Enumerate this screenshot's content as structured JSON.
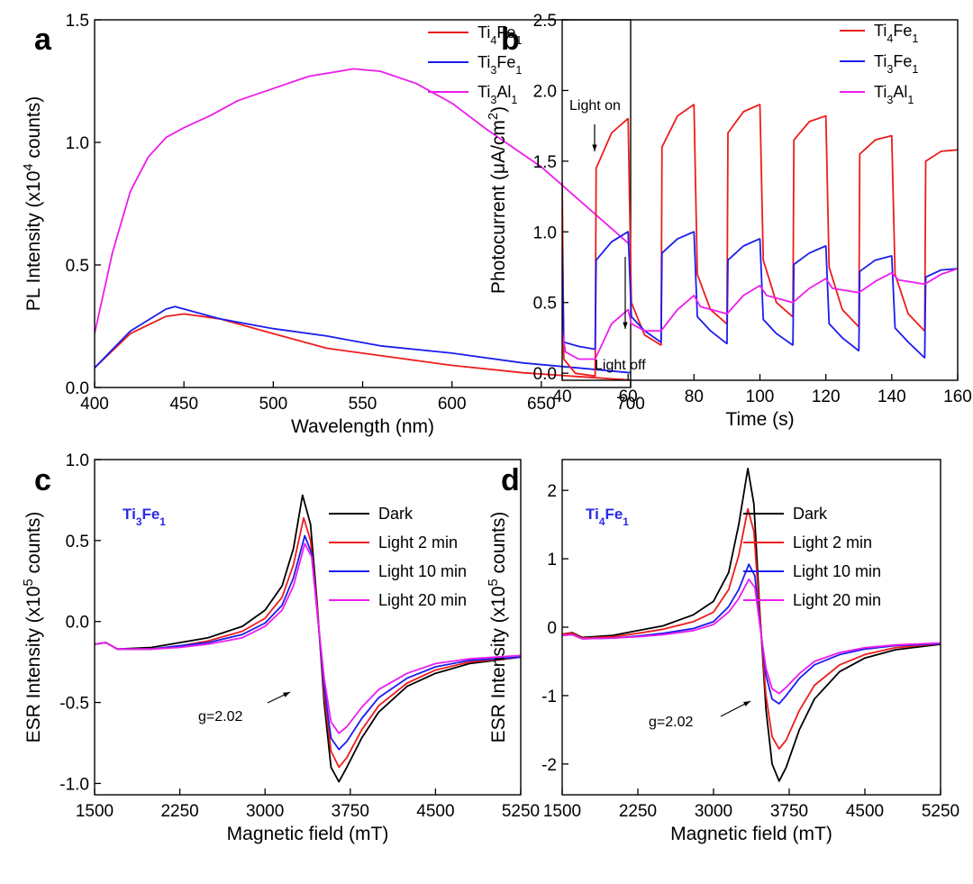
{
  "chart_data": [
    {
      "type": "line",
      "panel_label": "a",
      "xlabel": "Wavelength (nm)",
      "ylabel": "PL Intensity (x10{4} counts)",
      "xlim": [
        400,
        700
      ],
      "ylim": [
        0.0,
        1.5
      ],
      "xticks": [
        400,
        450,
        500,
        550,
        600,
        650,
        700
      ],
      "xtick_labels": [
        "400",
        "450",
        "500",
        "550",
        "600",
        "650",
        "700"
      ],
      "yticks": [
        0.0,
        0.5,
        1.0,
        1.5
      ],
      "ytick_labels": [
        "0.0",
        "0.5",
        "1.0",
        "1.5"
      ],
      "legend_position": "top-right",
      "series": [
        {
          "name": "Ti{4}Fe{1}",
          "color": "#ee1c1c",
          "x": [
            400,
            420,
            440,
            450,
            470,
            500,
            530,
            560,
            600,
            640,
            670,
            700
          ],
          "y": [
            0.08,
            0.22,
            0.29,
            0.3,
            0.28,
            0.22,
            0.16,
            0.13,
            0.09,
            0.06,
            0.045,
            0.03
          ]
        },
        {
          "name": "Ti{3}Fe{1}",
          "color": "#1c1cee",
          "x": [
            400,
            420,
            440,
            445,
            470,
            500,
            530,
            560,
            600,
            640,
            670,
            700
          ],
          "y": [
            0.08,
            0.23,
            0.32,
            0.33,
            0.28,
            0.24,
            0.21,
            0.17,
            0.14,
            0.1,
            0.08,
            0.06
          ]
        },
        {
          "name": "Ti{3}Al{1}",
          "color": "#ee1cee",
          "x": [
            400,
            410,
            420,
            430,
            440,
            450,
            465,
            480,
            500,
            520,
            545,
            560,
            580,
            600,
            620,
            650,
            675,
            700
          ],
          "y": [
            0.22,
            0.55,
            0.8,
            0.94,
            1.02,
            1.06,
            1.11,
            1.17,
            1.22,
            1.27,
            1.3,
            1.29,
            1.24,
            1.16,
            1.05,
            0.9,
            0.74,
            0.58
          ]
        }
      ]
    },
    {
      "type": "line",
      "panel_label": "b",
      "xlabel": "Time (s)",
      "ylabel": "Photocurrent (μA/cm{2})",
      "xlim": [
        40,
        160
      ],
      "ylim": [
        -0.05,
        2.5
      ],
      "xticks": [
        40,
        60,
        80,
        100,
        120,
        140,
        160
      ],
      "xtick_labels": [
        "40",
        "60",
        "80",
        "100",
        "120",
        "140",
        "160"
      ],
      "yticks": [
        0.0,
        0.5,
        1.0,
        1.5,
        2.0,
        2.5
      ],
      "ytick_labels": [
        "0.0",
        "0.5",
        "1.0",
        "1.5",
        "2.0",
        "2.5"
      ],
      "legend_position": "top-right",
      "annotations": [
        {
          "text": "Light on",
          "x": 50,
          "y": 2.02
        },
        {
          "text": "Light off",
          "x": 60,
          "y": 0.0
        }
      ],
      "series": [
        {
          "name": "Ti{4}Fe{1}",
          "color": "#ee1c1c",
          "x": [
            40,
            40.5,
            44,
            49.9,
            50,
            50.3,
            55,
            59.9,
            60,
            61,
            65,
            69.9,
            70,
            70.3,
            75,
            79.9,
            80,
            81,
            85,
            89.9,
            90,
            90.3,
            95,
            99.9,
            100,
            101,
            105,
            109.9,
            110,
            110.3,
            115,
            119.9,
            120,
            121,
            125,
            129.9,
            130,
            130.3,
            135,
            139.9,
            140,
            141,
            145,
            149.9,
            150,
            150.3,
            155,
            160
          ],
          "y": [
            1.35,
            0.1,
            0.0,
            -0.02,
            -0.02,
            1.45,
            1.7,
            1.8,
            1.8,
            0.5,
            0.27,
            0.2,
            0.2,
            1.6,
            1.82,
            1.9,
            1.9,
            0.7,
            0.45,
            0.35,
            0.35,
            1.7,
            1.85,
            1.9,
            1.9,
            0.8,
            0.5,
            0.4,
            0.4,
            1.65,
            1.78,
            1.82,
            1.82,
            0.75,
            0.45,
            0.33,
            0.33,
            1.55,
            1.65,
            1.68,
            1.68,
            0.7,
            0.42,
            0.3,
            0.3,
            1.5,
            1.57,
            1.58
          ]
        },
        {
          "name": "Ti{3}Fe{1}",
          "color": "#1c1cee",
          "x": [
            40,
            40.5,
            45,
            49.9,
            50,
            50.3,
            55,
            59.9,
            60,
            61,
            65,
            69.9,
            70,
            70.3,
            75,
            79.9,
            80,
            81,
            85,
            89.9,
            90,
            90.3,
            95,
            99.9,
            100,
            101,
            105,
            109.9,
            110,
            110.3,
            115,
            119.9,
            120,
            121,
            125,
            129.9,
            130,
            130.3,
            135,
            139.9,
            140,
            141,
            145,
            149.9,
            150,
            150.3,
            155,
            160
          ],
          "y": [
            0.9,
            0.22,
            0.19,
            0.17,
            0.17,
            0.8,
            0.93,
            1.0,
            1.0,
            0.4,
            0.3,
            0.22,
            0.22,
            0.85,
            0.95,
            1.0,
            1.0,
            0.4,
            0.3,
            0.21,
            0.21,
            0.8,
            0.9,
            0.95,
            0.95,
            0.38,
            0.28,
            0.2,
            0.2,
            0.77,
            0.85,
            0.9,
            0.9,
            0.35,
            0.25,
            0.16,
            0.16,
            0.72,
            0.8,
            0.83,
            0.83,
            0.32,
            0.22,
            0.11,
            0.11,
            0.68,
            0.73,
            0.74
          ]
        },
        {
          "name": "Ti{3}Al{1}",
          "color": "#ee1cee",
          "x": [
            40,
            41,
            45,
            50,
            55,
            60,
            61,
            65,
            70,
            75,
            80,
            82,
            90,
            95,
            100,
            102,
            110,
            115,
            120,
            122,
            130,
            135,
            140,
            142,
            150,
            155,
            160
          ],
          "y": [
            0.3,
            0.15,
            0.1,
            0.1,
            0.35,
            0.45,
            0.35,
            0.3,
            0.3,
            0.45,
            0.55,
            0.47,
            0.42,
            0.55,
            0.62,
            0.55,
            0.5,
            0.6,
            0.67,
            0.6,
            0.57,
            0.65,
            0.71,
            0.66,
            0.63,
            0.7,
            0.74
          ]
        }
      ]
    },
    {
      "type": "line",
      "panel_label": "c",
      "inset_label": "Ti{3}Fe{1}",
      "xlabel": "Magnetic field (mT)",
      "ylabel": "ESR Intensity (x10{5} counts)",
      "xlim": [
        1500,
        5250
      ],
      "ylim": [
        -1.07,
        1.0
      ],
      "xticks": [
        1500,
        2250,
        3000,
        3750,
        4500,
        5250
      ],
      "xtick_labels": [
        "1500",
        "2250",
        "3000",
        "3750",
        "4500",
        "5250"
      ],
      "yticks": [
        -1.0,
        -0.5,
        0.0,
        0.5,
        1.0
      ],
      "ytick_labels": [
        "-1.0",
        "-0.5",
        "0.0",
        "0.5",
        "1.0"
      ],
      "legend_position": "top-right",
      "annotations": [
        {
          "text": "g=2.02",
          "x": 3480,
          "y": -0.13
        }
      ],
      "series": [
        {
          "name": "Dark",
          "color": "#000000",
          "x": [
            1500,
            1600,
            1700,
            2000,
            2250,
            2500,
            2800,
            3000,
            3150,
            3250,
            3330,
            3400,
            3460,
            3520,
            3580,
            3650,
            3720,
            3850,
            4000,
            4250,
            4500,
            4800,
            5250
          ],
          "y": [
            -0.14,
            -0.13,
            -0.17,
            -0.16,
            -0.13,
            -0.1,
            -0.03,
            0.07,
            0.22,
            0.45,
            0.78,
            0.6,
            0.1,
            -0.5,
            -0.9,
            -0.99,
            -0.9,
            -0.72,
            -0.56,
            -0.4,
            -0.32,
            -0.26,
            -0.22
          ]
        },
        {
          "name": "Light 2 min",
          "color": "#ee1c1c",
          "x": [
            1500,
            1600,
            1700,
            2000,
            2250,
            2500,
            2800,
            3000,
            3150,
            3250,
            3340,
            3400,
            3460,
            3520,
            3580,
            3650,
            3720,
            3850,
            4000,
            4250,
            4500,
            4800,
            5250
          ],
          "y": [
            -0.14,
            -0.13,
            -0.17,
            -0.17,
            -0.15,
            -0.12,
            -0.06,
            0.02,
            0.15,
            0.35,
            0.64,
            0.5,
            0.08,
            -0.45,
            -0.8,
            -0.9,
            -0.84,
            -0.67,
            -0.52,
            -0.38,
            -0.3,
            -0.25,
            -0.22
          ]
        },
        {
          "name": "Light 10 min",
          "color": "#1c1cee",
          "x": [
            1500,
            1600,
            1700,
            2000,
            2250,
            2500,
            2800,
            3000,
            3150,
            3250,
            3350,
            3410,
            3460,
            3520,
            3580,
            3650,
            3720,
            3850,
            4000,
            4250,
            4500,
            4800,
            5250
          ],
          "y": [
            -0.14,
            -0.13,
            -0.17,
            -0.17,
            -0.15,
            -0.13,
            -0.08,
            -0.01,
            0.1,
            0.27,
            0.53,
            0.42,
            0.05,
            -0.4,
            -0.72,
            -0.79,
            -0.74,
            -0.6,
            -0.47,
            -0.35,
            -0.28,
            -0.24,
            -0.22
          ]
        },
        {
          "name": "Light 20 min",
          "color": "#ee1cee",
          "x": [
            1500,
            1600,
            1700,
            2000,
            2250,
            2500,
            2800,
            3000,
            3150,
            3250,
            3350,
            3410,
            3460,
            3520,
            3580,
            3650,
            3720,
            3850,
            4000,
            4250,
            4500,
            4800,
            5250
          ],
          "y": [
            -0.14,
            -0.13,
            -0.17,
            -0.17,
            -0.16,
            -0.14,
            -0.1,
            -0.03,
            0.07,
            0.22,
            0.48,
            0.4,
            0.05,
            -0.35,
            -0.62,
            -0.69,
            -0.65,
            -0.53,
            -0.42,
            -0.32,
            -0.26,
            -0.23,
            -0.21
          ]
        }
      ]
    },
    {
      "type": "line",
      "panel_label": "d",
      "inset_label": "Ti{4}Fe{1}",
      "xlabel": "Magnetic field (mT)",
      "ylabel": "ESR Intensity (x10{5} counts)",
      "xlim": [
        1500,
        5250
      ],
      "ylim": [
        -2.45,
        2.45
      ],
      "xticks": [
        1500,
        2250,
        3000,
        3750,
        4500,
        5250
      ],
      "xtick_labels": [
        "1500",
        "2250",
        "3000",
        "3750",
        "4500",
        "5250"
      ],
      "yticks": [
        -2,
        -1,
        0,
        1,
        2
      ],
      "ytick_labels": [
        "-2",
        "-1",
        "0",
        "1",
        "2"
      ],
      "legend_position": "top-right",
      "annotations": [
        {
          "text": "g=2.02",
          "x": 3480,
          "y": -0.3
        }
      ],
      "series": [
        {
          "name": "Dark",
          "color": "#000000",
          "x": [
            1500,
            1600,
            1700,
            2000,
            2250,
            2500,
            2800,
            3000,
            3150,
            3250,
            3340,
            3400,
            3460,
            3520,
            3580,
            3650,
            3720,
            3850,
            4000,
            4250,
            4500,
            4800,
            5250
          ],
          "y": [
            -0.1,
            -0.08,
            -0.15,
            -0.12,
            -0.05,
            0.02,
            0.18,
            0.38,
            0.8,
            1.5,
            2.32,
            1.8,
            0.2,
            -1.2,
            -2.0,
            -2.25,
            -2.05,
            -1.5,
            -1.05,
            -0.65,
            -0.45,
            -0.33,
            -0.25
          ]
        },
        {
          "name": "Light 2 min",
          "color": "#ee1c1c",
          "x": [
            1500,
            1600,
            1700,
            2000,
            2250,
            2500,
            2800,
            3000,
            3150,
            3250,
            3340,
            3400,
            3460,
            3520,
            3580,
            3650,
            3720,
            3850,
            4000,
            4250,
            4500,
            4800,
            5250
          ],
          "y": [
            -0.1,
            -0.09,
            -0.16,
            -0.14,
            -0.09,
            -0.03,
            0.08,
            0.22,
            0.55,
            1.05,
            1.73,
            1.4,
            0.15,
            -1.0,
            -1.6,
            -1.78,
            -1.65,
            -1.22,
            -0.85,
            -0.55,
            -0.4,
            -0.3,
            -0.24
          ]
        },
        {
          "name": "Light 10 min",
          "color": "#1c1cee",
          "x": [
            1500,
            1600,
            1700,
            2000,
            2250,
            2500,
            2800,
            3000,
            3150,
            3250,
            3350,
            3410,
            3460,
            3520,
            3580,
            3650,
            3720,
            3850,
            4000,
            4250,
            4500,
            4800,
            5250
          ],
          "y": [
            -0.12,
            -0.11,
            -0.17,
            -0.16,
            -0.13,
            -0.09,
            -0.02,
            0.08,
            0.3,
            0.55,
            0.92,
            0.75,
            0.05,
            -0.7,
            -1.05,
            -1.12,
            -1.0,
            -0.75,
            -0.55,
            -0.4,
            -0.32,
            -0.27,
            -0.24
          ]
        },
        {
          "name": "Light 20 min",
          "color": "#ee1cee",
          "x": [
            1500,
            1600,
            1700,
            2000,
            2250,
            2500,
            2800,
            3000,
            3150,
            3250,
            3350,
            3410,
            3460,
            3520,
            3580,
            3650,
            3720,
            3850,
            4000,
            4250,
            4500,
            4800,
            5250
          ],
          "y": [
            -0.12,
            -0.11,
            -0.17,
            -0.16,
            -0.14,
            -0.11,
            -0.05,
            0.04,
            0.22,
            0.42,
            0.7,
            0.58,
            0.02,
            -0.6,
            -0.9,
            -0.97,
            -0.88,
            -0.68,
            -0.5,
            -0.37,
            -0.3,
            -0.26,
            -0.23
          ]
        }
      ]
    }
  ]
}
